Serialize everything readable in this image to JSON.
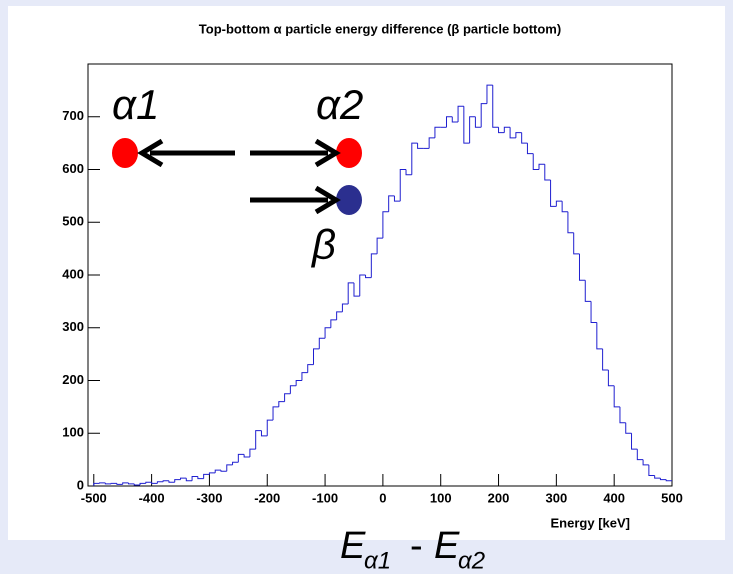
{
  "chart_data": {
    "type": "histogram",
    "title": "Top-bottom α particle energy difference (β particle bottom)",
    "x_label": "Energy [keV]",
    "color": "#1f1fd0",
    "bins": [
      -500,
      -490,
      -480,
      -470,
      -460,
      -450,
      -440,
      -430,
      -420,
      -410,
      -400,
      -390,
      -380,
      -370,
      -360,
      -350,
      -340,
      -330,
      -320,
      -310,
      -300,
      -290,
      -280,
      -270,
      -260,
      -250,
      -240,
      -230,
      -220,
      -210,
      -200,
      -190,
      -180,
      -170,
      -160,
      -150,
      -140,
      -130,
      -120,
      -110,
      -100,
      -90,
      -80,
      -70,
      -60,
      -50,
      -40,
      -30,
      -20,
      -10,
      0,
      10,
      20,
      30,
      40,
      50,
      60,
      70,
      80,
      90,
      100,
      110,
      120,
      130,
      140,
      150,
      160,
      170,
      180,
      190,
      200,
      210,
      220,
      230,
      240,
      250,
      260,
      270,
      280,
      290,
      300,
      310,
      320,
      330,
      340,
      350,
      360,
      370,
      380,
      390,
      400,
      410,
      420,
      430,
      440,
      450,
      460,
      470,
      480,
      490,
      500
    ],
    "values": [
      5,
      6,
      4,
      5,
      3,
      6,
      4,
      2,
      5,
      7,
      5,
      8,
      10,
      7,
      12,
      15,
      10,
      18,
      14,
      22,
      25,
      30,
      28,
      40,
      45,
      60,
      55,
      70,
      105,
      95,
      125,
      150,
      160,
      175,
      190,
      200,
      215,
      230,
      260,
      280,
      300,
      315,
      330,
      345,
      385,
      360,
      400,
      395,
      440,
      470,
      520,
      550,
      540,
      600,
      590,
      650,
      640,
      640,
      660,
      680,
      680,
      700,
      690,
      720,
      650,
      700,
      680,
      725,
      760,
      680,
      670,
      680,
      660,
      670,
      650,
      630,
      600,
      610,
      580,
      530,
      540,
      520,
      480,
      440,
      390,
      350,
      310,
      260,
      220,
      190,
      150,
      120,
      100,
      70,
      50,
      40,
      20,
      15,
      12,
      10
    ],
    "xlim": [
      -510,
      500
    ],
    "ylim": [
      0,
      800
    ],
    "xticks": [
      -500,
      -400,
      -300,
      -200,
      -100,
      0,
      100,
      200,
      300,
      400,
      500
    ],
    "yticks": [
      0,
      100,
      200,
      300,
      400,
      500,
      600,
      700
    ],
    "annotations": {
      "alpha1": "α1",
      "alpha2": "α2",
      "beta": "β",
      "formula": {
        "e1": "E",
        "sub1": "α1",
        "minus": "-",
        "e2": "E",
        "sub2": "α2"
      }
    }
  }
}
